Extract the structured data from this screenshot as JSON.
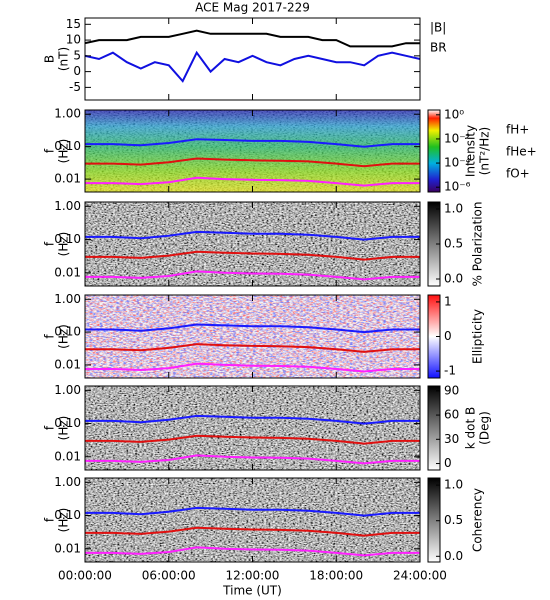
{
  "chart_data": [
    {
      "type": "line",
      "title": "ACE Mag 2017-229",
      "ylabel": [
        "B",
        "(nT)"
      ],
      "x": [
        0,
        1,
        2,
        3,
        4,
        5,
        6,
        7,
        8,
        9,
        10,
        11,
        12,
        13,
        14,
        15,
        16,
        17,
        18,
        19,
        20,
        21,
        22,
        23,
        24
      ],
      "xlim": [
        0,
        24
      ],
      "ylim": [
        -9,
        17
      ],
      "yticks": [
        -5,
        0,
        5,
        10,
        15
      ],
      "series": [
        {
          "name": "|B|",
          "color": "#000000",
          "values": [
            9,
            10,
            10,
            10,
            11,
            11,
            11,
            12,
            13,
            12,
            12,
            12,
            12,
            12,
            11,
            11,
            11,
            10,
            10,
            8,
            8,
            8,
            8,
            9,
            9
          ]
        },
        {
          "name": "BR",
          "color": "#1010e0",
          "values": [
            5,
            4,
            6,
            3,
            1,
            3,
            2,
            -3,
            6,
            0,
            4,
            3,
            5,
            3,
            2,
            4,
            5,
            4,
            3,
            3,
            2,
            5,
            6,
            5,
            4
          ]
        }
      ]
    },
    {
      "type": "spectrogram",
      "ylabel": [
        "f",
        "(Hz)"
      ],
      "log": true,
      "colormap": "rainbow",
      "xlim": [
        0,
        24
      ],
      "ylim": [
        0.004,
        1.35
      ],
      "yticks": [
        {
          "value": 0.01,
          "label": "0.01"
        },
        {
          "value": 0.1,
          "label": "0.10"
        },
        {
          "value": 1,
          "label": "1.00"
        }
      ],
      "colorbar": {
        "label": [
          "Intensity",
          "(nT²/Hz)"
        ],
        "log": true,
        "lim": [
          4e-07,
          2.5
        ],
        "ticks": [
          {
            "value": 1e-06,
            "label": "10⁻⁶"
          },
          {
            "value": 0.0001,
            "label": "10⁻⁴"
          },
          {
            "value": 0.01,
            "label": "10⁻²"
          },
          {
            "value": 1,
            "label": "10⁰"
          }
        ]
      },
      "x": [
        0,
        2,
        4,
        6,
        8,
        10,
        12,
        14,
        16,
        18,
        20,
        22,
        24
      ],
      "series": [
        {
          "name": "fH+",
          "color": "#1a1aff",
          "values": [
            0.12,
            0.12,
            0.11,
            0.13,
            0.17,
            0.16,
            0.15,
            0.15,
            0.14,
            0.12,
            0.1,
            0.12,
            0.12
          ]
        },
        {
          "name": "fHe+",
          "color": "#e01010",
          "values": [
            0.03,
            0.03,
            0.028,
            0.033,
            0.043,
            0.04,
            0.038,
            0.037,
            0.035,
            0.03,
            0.025,
            0.03,
            0.03
          ]
        },
        {
          "name": "fO+",
          "color": "#ff20ff",
          "values": [
            0.0075,
            0.0075,
            0.007,
            0.008,
            0.011,
            0.01,
            0.0095,
            0.0093,
            0.0088,
            0.0075,
            0.0063,
            0.0075,
            0.0075
          ]
        }
      ]
    },
    {
      "type": "spectrogram",
      "ylabel": [
        "f",
        "(Hz)"
      ],
      "log": true,
      "colormap": "gray",
      "xlim": [
        0,
        24
      ],
      "ylim": [
        0.004,
        1.35
      ],
      "yticks": [
        {
          "value": 0.01,
          "label": "0.01"
        },
        {
          "value": 0.1,
          "label": "0.10"
        },
        {
          "value": 1,
          "label": "1.00"
        }
      ],
      "colorbar": {
        "label": [
          "% Polarization"
        ],
        "lim": [
          -0.1,
          1.1
        ],
        "ticks": [
          {
            "value": 0,
            "label": "0.0"
          },
          {
            "value": 0.5,
            "label": "0.5"
          },
          {
            "value": 1,
            "label": "1.0"
          }
        ]
      },
      "x": [
        0,
        2,
        4,
        6,
        8,
        10,
        12,
        14,
        16,
        18,
        20,
        22,
        24
      ],
      "series": [
        {
          "color": "#1a1aff",
          "values": [
            0.12,
            0.12,
            0.11,
            0.13,
            0.17,
            0.16,
            0.15,
            0.15,
            0.14,
            0.12,
            0.1,
            0.12,
            0.12
          ]
        },
        {
          "color": "#e01010",
          "values": [
            0.03,
            0.03,
            0.028,
            0.033,
            0.043,
            0.04,
            0.038,
            0.037,
            0.035,
            0.03,
            0.025,
            0.03,
            0.03
          ]
        },
        {
          "color": "#ff20ff",
          "values": [
            0.0075,
            0.0075,
            0.007,
            0.008,
            0.011,
            0.01,
            0.0095,
            0.0093,
            0.0088,
            0.0075,
            0.0063,
            0.0075,
            0.0075
          ]
        }
      ]
    },
    {
      "type": "spectrogram",
      "ylabel": [
        "f",
        "(Hz)"
      ],
      "log": true,
      "colormap": "bwr",
      "xlim": [
        0,
        24
      ],
      "ylim": [
        0.004,
        1.35
      ],
      "yticks": [
        {
          "value": 0.01,
          "label": "0.01"
        },
        {
          "value": 0.1,
          "label": "0.10"
        },
        {
          "value": 1,
          "label": "1.00"
        }
      ],
      "colorbar": {
        "label": [
          "Ellipticity"
        ],
        "lim": [
          -1.2,
          1.2
        ],
        "ticks": [
          -1,
          0,
          1
        ]
      },
      "x": [
        0,
        2,
        4,
        6,
        8,
        10,
        12,
        14,
        16,
        18,
        20,
        22,
        24
      ],
      "series": [
        {
          "color": "#1a1aff",
          "values": [
            0.12,
            0.12,
            0.11,
            0.13,
            0.17,
            0.16,
            0.15,
            0.15,
            0.14,
            0.12,
            0.1,
            0.12,
            0.12
          ]
        },
        {
          "color": "#e01010",
          "values": [
            0.03,
            0.03,
            0.028,
            0.033,
            0.043,
            0.04,
            0.038,
            0.037,
            0.035,
            0.03,
            0.025,
            0.03,
            0.03
          ]
        },
        {
          "color": "#ff20ff",
          "values": [
            0.0075,
            0.0075,
            0.007,
            0.008,
            0.011,
            0.01,
            0.0095,
            0.0093,
            0.0088,
            0.0075,
            0.0063,
            0.0075,
            0.0075
          ]
        }
      ]
    },
    {
      "type": "spectrogram",
      "ylabel": [
        "f",
        "(Hz)"
      ],
      "log": true,
      "colormap": "gray",
      "xlim": [
        0,
        24
      ],
      "ylim": [
        0.004,
        1.35
      ],
      "yticks": [
        {
          "value": 0.01,
          "label": "0.01"
        },
        {
          "value": 0.1,
          "label": "0.10"
        },
        {
          "value": 1,
          "label": "1.00"
        }
      ],
      "colorbar": {
        "label": [
          "k dot B",
          "(Deg)"
        ],
        "lim": [
          -8,
          96
        ],
        "ticks": [
          0,
          30,
          60,
          90
        ]
      },
      "x": [
        0,
        2,
        4,
        6,
        8,
        10,
        12,
        14,
        16,
        18,
        20,
        22,
        24
      ],
      "series": [
        {
          "color": "#1a1aff",
          "values": [
            0.12,
            0.12,
            0.11,
            0.13,
            0.17,
            0.16,
            0.15,
            0.15,
            0.14,
            0.12,
            0.1,
            0.12,
            0.12
          ]
        },
        {
          "color": "#e01010",
          "values": [
            0.03,
            0.03,
            0.028,
            0.033,
            0.043,
            0.04,
            0.038,
            0.037,
            0.035,
            0.03,
            0.025,
            0.03,
            0.03
          ]
        },
        {
          "color": "#ff20ff",
          "values": [
            0.0075,
            0.0075,
            0.007,
            0.008,
            0.011,
            0.01,
            0.0095,
            0.0093,
            0.0088,
            0.0075,
            0.0063,
            0.0075,
            0.0075
          ]
        }
      ]
    },
    {
      "type": "spectrogram",
      "ylabel": [
        "f",
        "(Hz)"
      ],
      "log": true,
      "colormap": "gray",
      "xlim": [
        0,
        24
      ],
      "ylim": [
        0.004,
        1.35
      ],
      "yticks": [
        {
          "value": 0.01,
          "label": "0.01"
        },
        {
          "value": 0.1,
          "label": "0.10"
        },
        {
          "value": 1,
          "label": "1.00"
        }
      ],
      "colorbar": {
        "label": [
          "Coherency"
        ],
        "lim": [
          -0.08,
          1.1
        ],
        "ticks": [
          {
            "value": 0,
            "label": "0.0"
          },
          {
            "value": 0.5,
            "label": "0.5"
          },
          {
            "value": 1,
            "label": "1.0"
          }
        ]
      },
      "xlabel": "Time (UT)",
      "xticks": [
        {
          "value": 0,
          "label": "00:00:00"
        },
        {
          "value": 6,
          "label": "06:00:00"
        },
        {
          "value": 12,
          "label": "12:00:00"
        },
        {
          "value": 18,
          "label": "18:00:00"
        },
        {
          "value": 24,
          "label": "24:00:00"
        }
      ],
      "x": [
        0,
        2,
        4,
        6,
        8,
        10,
        12,
        14,
        16,
        18,
        20,
        22,
        24
      ],
      "series": [
        {
          "color": "#1a1aff",
          "values": [
            0.12,
            0.12,
            0.11,
            0.13,
            0.17,
            0.16,
            0.15,
            0.15,
            0.14,
            0.12,
            0.1,
            0.12,
            0.12
          ]
        },
        {
          "color": "#e01010",
          "values": [
            0.03,
            0.03,
            0.028,
            0.033,
            0.043,
            0.04,
            0.038,
            0.037,
            0.035,
            0.03,
            0.025,
            0.03,
            0.03
          ]
        },
        {
          "color": "#ff20ff",
          "values": [
            0.0075,
            0.0075,
            0.007,
            0.008,
            0.011,
            0.01,
            0.0095,
            0.0093,
            0.0088,
            0.0075,
            0.0063,
            0.0075,
            0.0075
          ]
        }
      ]
    }
  ]
}
